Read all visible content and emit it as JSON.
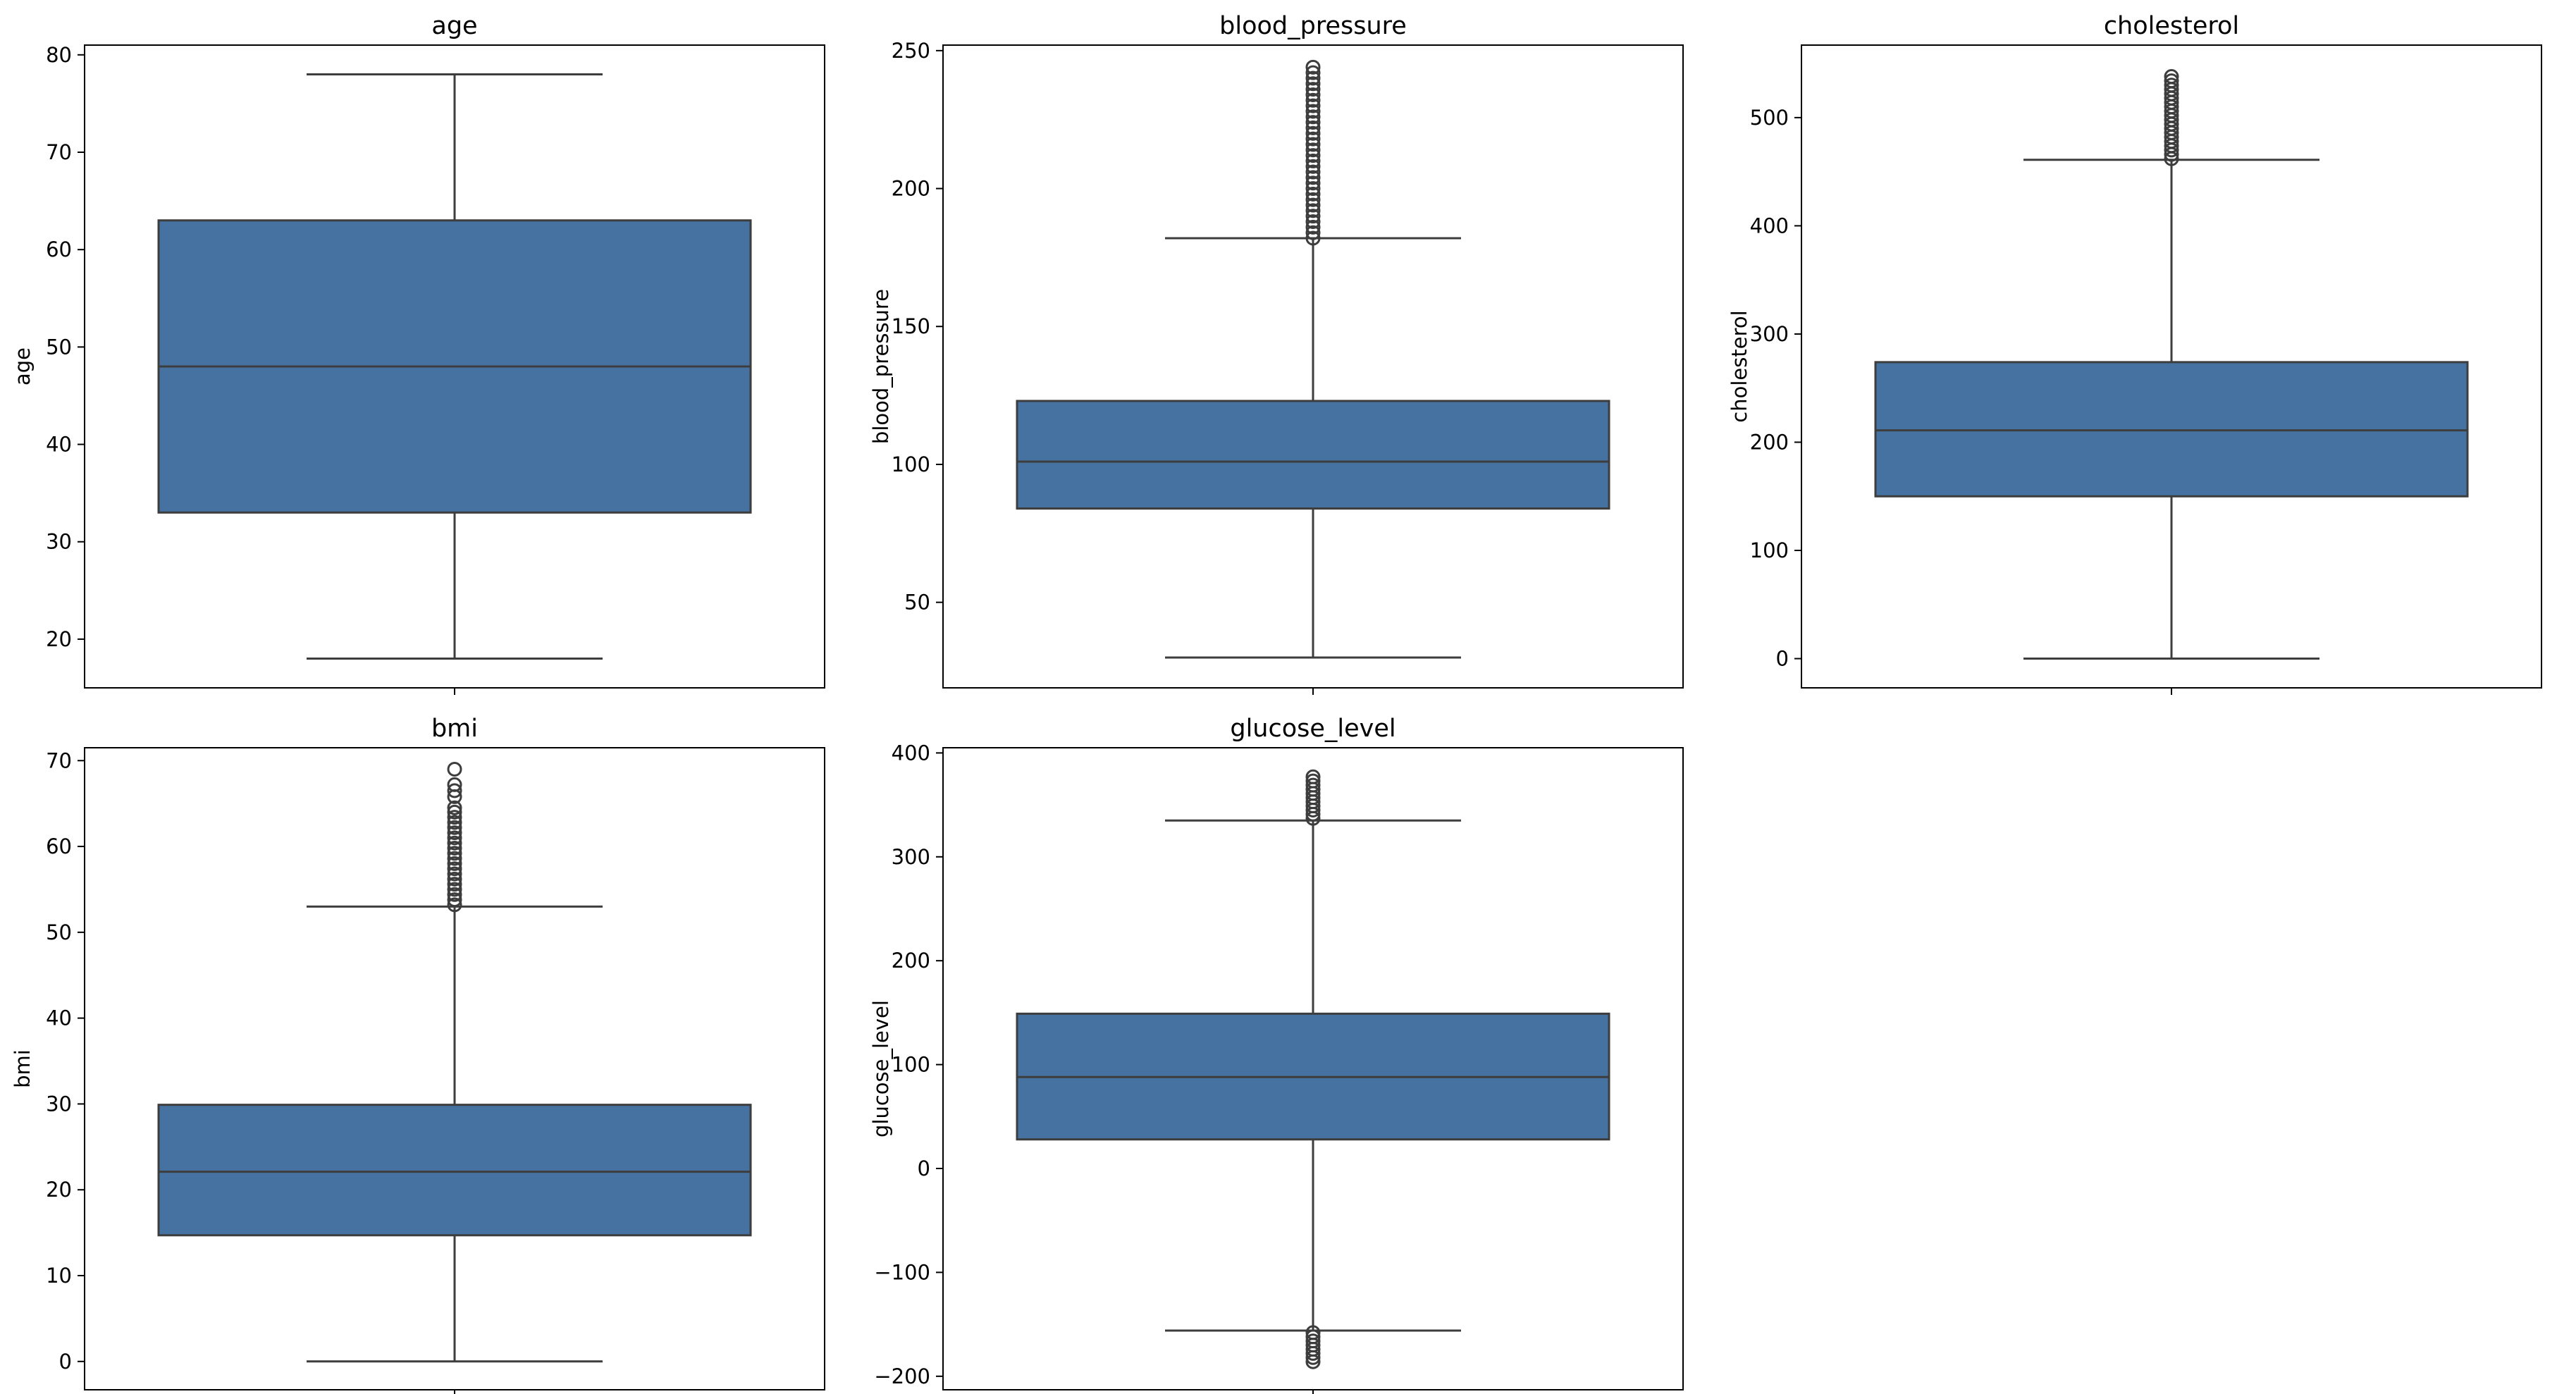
{
  "chart_data": [
    {
      "type": "box",
      "title": "age",
      "xlabel": "",
      "ylabel": "age",
      "ylim": [
        15,
        81
      ],
      "yticks": [
        20,
        30,
        40,
        50,
        60,
        70,
        80
      ],
      "stats": {
        "whisker_low": 18,
        "q1": 33,
        "median": 48,
        "q3": 63,
        "whisker_high": 78
      },
      "outliers": [],
      "color": "#4572a0"
    },
    {
      "type": "box",
      "title": "blood_pressure",
      "xlabel": "",
      "ylabel": "blood_pressure",
      "ylim": [
        19,
        252
      ],
      "yticks": [
        50,
        100,
        150,
        200,
        250
      ],
      "stats": {
        "whisker_low": 30,
        "q1": 84,
        "median": 101,
        "q3": 123,
        "whisker_high": 182
      },
      "outliers": [
        182,
        184,
        186,
        188,
        190,
        192,
        194,
        196,
        198,
        200,
        202,
        204,
        206,
        208,
        210,
        212,
        214,
        216,
        218,
        220,
        222,
        224,
        226,
        228,
        230,
        232,
        234,
        236,
        238,
        240,
        242,
        244
      ],
      "color": "#4572a0"
    },
    {
      "type": "box",
      "title": "cholesterol",
      "xlabel": "",
      "ylabel": "cholesterol",
      "ylim": [
        -27,
        567
      ],
      "yticks": [
        0,
        100,
        200,
        300,
        400,
        500
      ],
      "stats": {
        "whisker_low": 0,
        "q1": 150,
        "median": 211,
        "q3": 274,
        "whisker_high": 461
      },
      "outliers": [
        462,
        466,
        470,
        474,
        478,
        482,
        486,
        490,
        494,
        498,
        502,
        506,
        510,
        514,
        518,
        522,
        526,
        530,
        534,
        538
      ],
      "color": "#4572a0"
    },
    {
      "type": "box",
      "title": "bmi",
      "xlabel": "",
      "ylabel": "bmi",
      "ylim": [
        -3.3,
        71.5
      ],
      "yticks": [
        0,
        10,
        20,
        30,
        40,
        50,
        60,
        70
      ],
      "stats": {
        "whisker_low": 0,
        "q1": 14.7,
        "median": 22.1,
        "q3": 29.9,
        "whisker_high": 53
      },
      "outliers": [
        53.2,
        53.8,
        54.4,
        55,
        55.6,
        56.2,
        56.8,
        57.4,
        58,
        58.6,
        59.2,
        59.8,
        60.4,
        61,
        61.6,
        62.2,
        62.8,
        63.4,
        64,
        64.5,
        65.8,
        66.5,
        67.2,
        69
      ],
      "color": "#4572a0"
    },
    {
      "type": "box",
      "title": "glucose_level",
      "xlabel": "",
      "ylabel": "glucose_level",
      "ylim": [
        -213,
        405
      ],
      "yticks": [
        -200,
        -100,
        0,
        100,
        200,
        300,
        400
      ],
      "stats": {
        "whisker_low": -156,
        "q1": 28,
        "median": 88,
        "q3": 149,
        "whisker_high": 335
      },
      "outliers": [
        -158,
        -162,
        -166,
        -170,
        -174,
        -178,
        -182,
        -186,
        337,
        341,
        345,
        349,
        353,
        357,
        361,
        365,
        369,
        373,
        377
      ],
      "color": "#4572a0"
    }
  ]
}
